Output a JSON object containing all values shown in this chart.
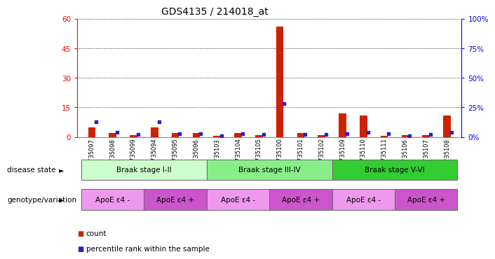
{
  "title": "GDS4135 / 214018_at",
  "samples": [
    "GSM735097",
    "GSM735098",
    "GSM735099",
    "GSM735094",
    "GSM735095",
    "GSM735096",
    "GSM735103",
    "GSM735104",
    "GSM735105",
    "GSM735100",
    "GSM735101",
    "GSM735102",
    "GSM735109",
    "GSM735110",
    "GSM735111",
    "GSM735106",
    "GSM735107",
    "GSM735108"
  ],
  "counts": [
    5,
    2,
    1,
    5,
    2,
    2,
    0.5,
    2,
    1,
    56,
    2,
    1,
    12,
    11,
    0.5,
    1,
    1,
    11
  ],
  "percentile_raw": [
    13,
    4,
    2,
    13,
    3,
    3,
    1,
    3,
    2,
    28,
    2,
    2,
    3,
    4,
    3,
    1,
    2,
    4
  ],
  "ylim_left": [
    0,
    60
  ],
  "ylim_right": [
    0,
    100
  ],
  "yticks_left": [
    0,
    15,
    30,
    45,
    60
  ],
  "yticks_right": [
    0,
    25,
    50,
    75,
    100
  ],
  "disease_state_groups": [
    {
      "label": "Braak stage I-II",
      "start": 0,
      "end": 6,
      "color": "#ccffcc"
    },
    {
      "label": "Braak stage III-IV",
      "start": 6,
      "end": 12,
      "color": "#88ee88"
    },
    {
      "label": "Braak stage V-VI",
      "start": 12,
      "end": 18,
      "color": "#33cc33"
    }
  ],
  "genotype_groups": [
    {
      "label": "ApoE ε4 -",
      "start": 0,
      "end": 3,
      "color": "#ee99ee"
    },
    {
      "label": "ApoE ε4 +",
      "start": 3,
      "end": 6,
      "color": "#cc55cc"
    },
    {
      "label": "ApoE ε4 -",
      "start": 6,
      "end": 9,
      "color": "#ee99ee"
    },
    {
      "label": "ApoE ε4 +",
      "start": 9,
      "end": 12,
      "color": "#cc55cc"
    },
    {
      "label": "ApoE ε4 -",
      "start": 12,
      "end": 15,
      "color": "#ee99ee"
    },
    {
      "label": "ApoE ε4 +",
      "start": 15,
      "end": 18,
      "color": "#cc55cc"
    }
  ],
  "bar_color": "#cc2200",
  "dot_color": "#2222cc",
  "bar_width": 0.35,
  "dot_size": 12,
  "legend_count_label": "count",
  "legend_pct_label": "percentile rank within the sample",
  "label_disease_state": "disease state",
  "label_genotype": "genotype/variation",
  "background_color": "#ffffff"
}
